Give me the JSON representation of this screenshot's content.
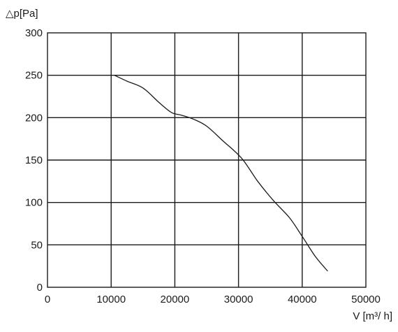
{
  "chart_data": {
    "type": "line",
    "title": "",
    "xlabel": "V [m³/ h]",
    "ylabel": "△p[Pa]",
    "xlim": [
      0,
      50000
    ],
    "ylim": [
      0,
      300
    ],
    "x_ticks": [
      "0",
      "10000",
      "20000",
      "30000",
      "40000",
      "50000"
    ],
    "y_ticks": [
      "0",
      "50",
      "100",
      "150",
      "200",
      "250",
      "300"
    ],
    "grid": true,
    "series": [
      {
        "x": [
          10500,
          12500,
          15000,
          17500,
          19500,
          21000,
          23000,
          25000,
          27500,
          30500,
          33000,
          35500,
          38000,
          40000,
          42000,
          44000
        ],
        "y": [
          250,
          243,
          235,
          218,
          206,
          203,
          198,
          190,
          173,
          152,
          125,
          102,
          82,
          60,
          37,
          19
        ]
      }
    ]
  }
}
